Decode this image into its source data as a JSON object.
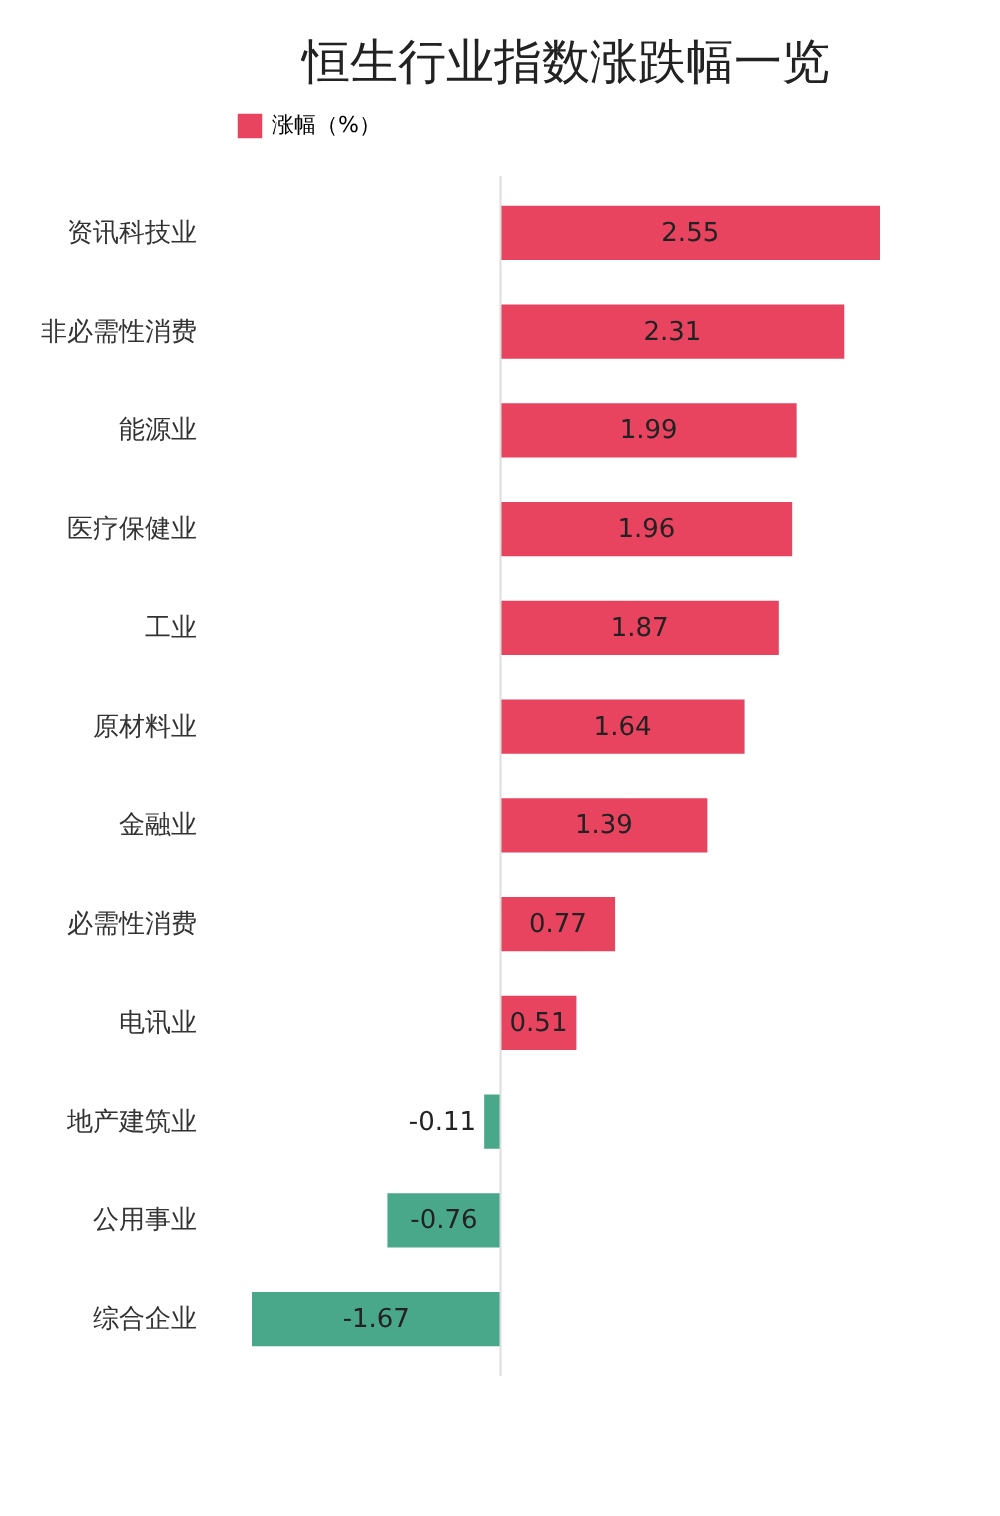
{
  "chart_data": {
    "type": "bar",
    "orientation": "horizontal",
    "title": "恒生行业指数涨跌幅一览",
    "categories": [
      "资讯科技业",
      "非必需性消费",
      "能源业",
      "医疗保健业",
      "工业",
      "原材料业",
      "金融业",
      "必需性消费",
      "电讯业",
      "地产建筑业",
      "公用事业",
      "综合企业"
    ],
    "series": [
      {
        "name": "涨幅（%）",
        "color": "#e8435f",
        "values": [
          2.55,
          2.31,
          1.99,
          1.96,
          1.87,
          1.64,
          1.39,
          0.77,
          0.51,
          -0.11,
          -0.76,
          -1.67
        ],
        "colors": [
          "#e8435f",
          "#e8435f",
          "#e8435f",
          "#e8435f",
          "#e8435f",
          "#e8435f",
          "#e8435f",
          "#e8435f",
          "#e8435f",
          "#4aa88a",
          "#4aa88a",
          "#4aa88a"
        ]
      }
    ],
    "data_labels": true,
    "legend": "top"
  }
}
